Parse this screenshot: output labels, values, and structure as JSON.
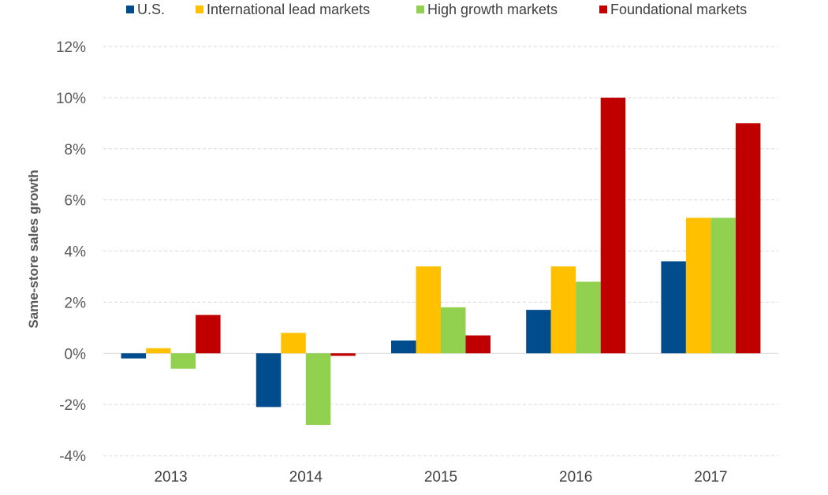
{
  "chart_data": {
    "type": "bar",
    "title": "",
    "xlabel": "",
    "ylabel": "Same-store sales growth",
    "ylim": [
      -4,
      12
    ],
    "yticks": [
      -4,
      -2,
      0,
      2,
      4,
      6,
      8,
      10,
      12
    ],
    "ytick_labels": [
      "-4%",
      "-2%",
      "0%",
      "2%",
      "4%",
      "6%",
      "8%",
      "10%",
      "12%"
    ],
    "categories": [
      "2013",
      "2014",
      "2015",
      "2016",
      "2017"
    ],
    "series": [
      {
        "name": "U.S.",
        "color": "#004c8c",
        "values": [
          -0.2,
          -2.1,
          0.5,
          1.7,
          3.6
        ]
      },
      {
        "name": "International lead markets",
        "color": "#ffc000",
        "values": [
          0.2,
          0.8,
          3.4,
          3.4,
          5.3
        ]
      },
      {
        "name": "High growth markets",
        "color": "#92d050",
        "values": [
          -0.6,
          -2.8,
          1.8,
          2.8,
          5.3
        ]
      },
      {
        "name": "Foundational markets",
        "color": "#c00000",
        "values": [
          1.5,
          -0.1,
          0.7,
          10.0,
          9.0
        ]
      }
    ],
    "legend_position": "top",
    "grid": true
  }
}
